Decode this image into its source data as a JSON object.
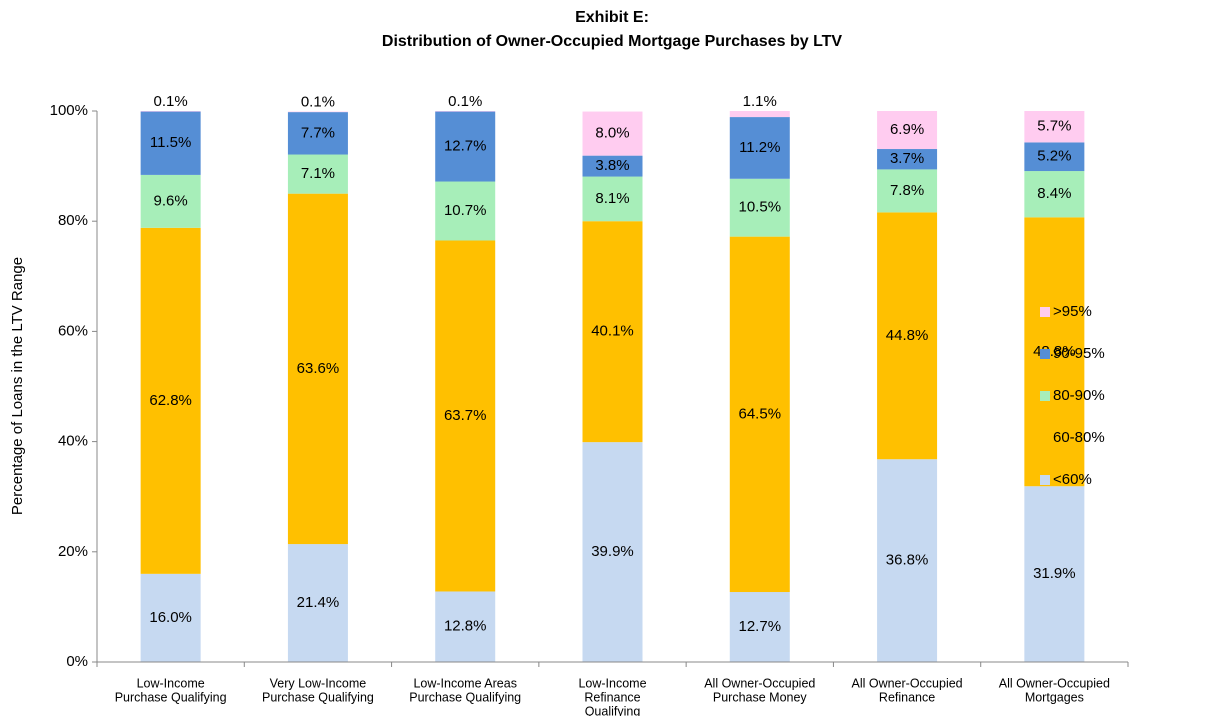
{
  "chart_data": {
    "type": "stacked_bar",
    "title": "Exhibit E:",
    "subtitle": "Distribution of Owner-Occupied  Mortgage Purchases by LTV",
    "y_label": "Percentage of Loans in the LTV Range",
    "categories": [
      [
        "Low-Income",
        "Purchase Qualifying"
      ],
      [
        "Very Low-Income",
        "Purchase Qualifying"
      ],
      [
        "Low-Income Areas",
        "Purchase Qualifying"
      ],
      [
        "Low-Income",
        "Refinance",
        "Qualifying"
      ],
      [
        "All Owner-Occupied",
        "Purchase Money"
      ],
      [
        "All Owner-Occupied",
        "Refinance"
      ],
      [
        "All Owner-Occupied",
        "Mortgages"
      ]
    ],
    "series": [
      {
        "name": "<60%",
        "color": "#c6d9f1",
        "values": [
          16.0,
          21.4,
          12.8,
          39.9,
          12.7,
          36.8,
          31.9
        ],
        "value_labels": [
          "16.0%",
          "21.4%",
          "12.8%",
          "39.9%",
          "12.7%",
          "36.8%",
          "31.9%"
        ]
      },
      {
        "name": "60-80%",
        "color": "#ffc000",
        "values": [
          62.8,
          63.6,
          63.7,
          40.1,
          64.5,
          44.8,
          48.8
        ],
        "value_labels": [
          "62.8%",
          "63.6%",
          "63.7%",
          "40.1%",
          "64.5%",
          "44.8%",
          "48.8%"
        ]
      },
      {
        "name": "80-90%",
        "color": "#a7eeb9",
        "values": [
          9.6,
          7.1,
          10.7,
          8.1,
          10.5,
          7.8,
          8.4
        ],
        "value_labels": [
          "9.6%",
          "7.1%",
          "10.7%",
          "8.1%",
          "10.5%",
          "7.8%",
          "8.4%"
        ]
      },
      {
        "name": "90-95%",
        "color": "#558ed5",
        "values": [
          11.5,
          7.7,
          12.7,
          3.8,
          11.2,
          3.7,
          5.2
        ],
        "value_labels": [
          "11.5%",
          "7.7%",
          "12.7%",
          "3.8%",
          "11.2%",
          "3.7%",
          "5.2%"
        ]
      },
      {
        "name": ">95%",
        "color": "#ffccf0",
        "values": [
          0.1,
          0.1,
          0.1,
          8.0,
          1.1,
          6.9,
          5.7
        ],
        "value_labels": [
          "0.1%",
          "0.1%",
          "0.1%",
          "8.0%",
          "1.1%",
          "6.9%",
          "5.7%"
        ]
      }
    ],
    "ylim": [
      0,
      100
    ],
    "yticks": [
      {
        "value": 0,
        "label": "0%"
      },
      {
        "value": 20,
        "label": "20%"
      },
      {
        "value": 40,
        "label": "40%"
      },
      {
        "value": 60,
        "label": "60%"
      },
      {
        "value": 80,
        "label": "80%"
      },
      {
        "value": 100,
        "label": "100%"
      }
    ],
    "legend": "right"
  }
}
